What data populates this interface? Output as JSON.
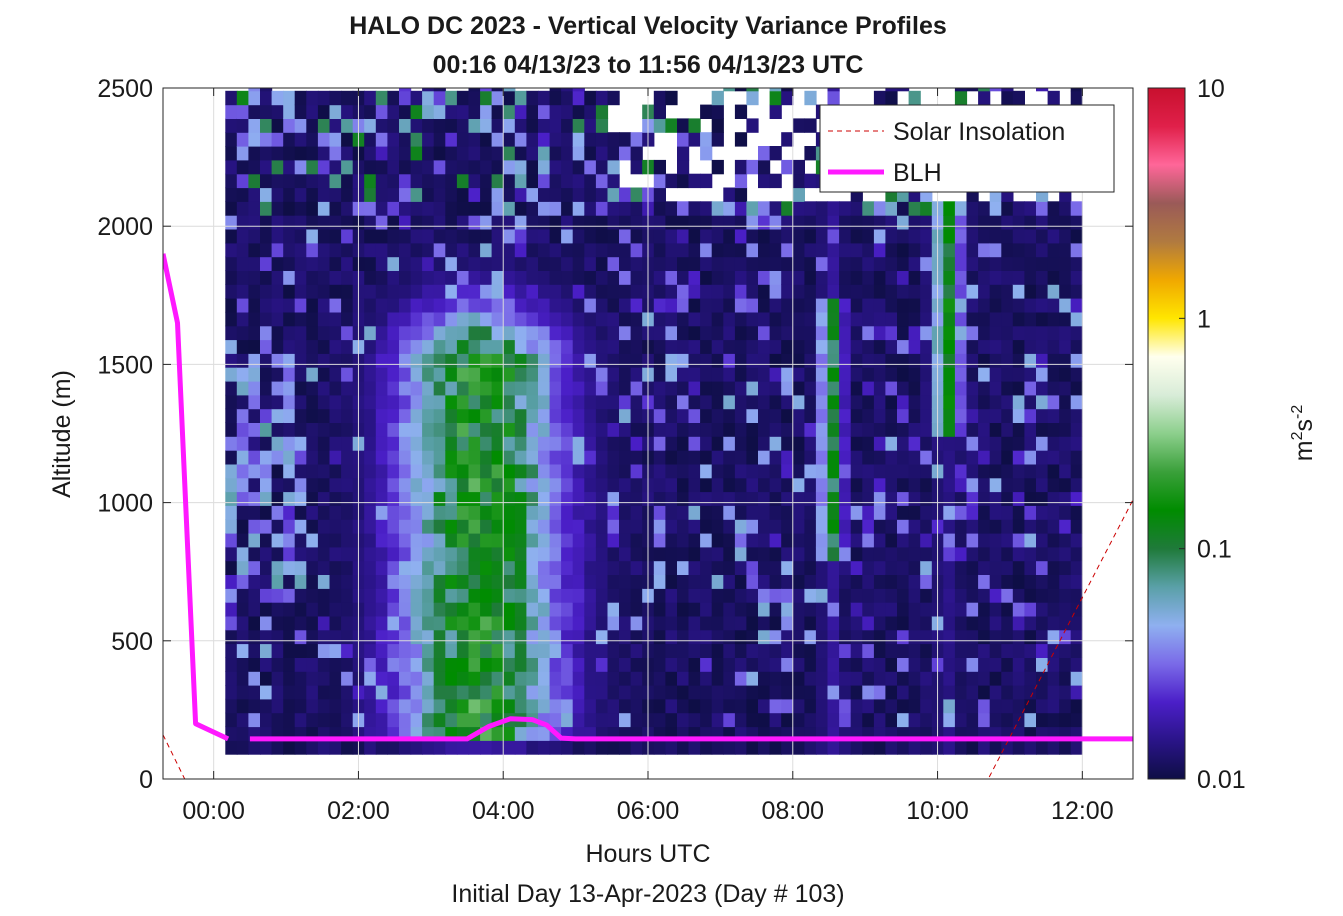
{
  "chart_data": {
    "type": "heatmap",
    "title": "HALO DC 2023 - Vertical Velocity Variance Profiles",
    "subtitle": "00:16 04/13/23 to 11:56 04/13/23  UTC",
    "xlabel": "Hours UTC",
    "xlabel2": "Initial Day 13-Apr-2023 (Day # 103)",
    "ylabel": "Altitude (m)",
    "xlim": [
      -0.7,
      12.7
    ],
    "ylim": [
      0,
      2500
    ],
    "xticks": [
      0,
      2,
      4,
      6,
      8,
      10,
      12
    ],
    "xtick_labels": [
      "00:00",
      "02:00",
      "04:00",
      "06:00",
      "08:00",
      "10:00",
      "12:00"
    ],
    "yticks": [
      0,
      500,
      1000,
      1500,
      2000,
      2500
    ],
    "ytick_labels": [
      "0",
      "500",
      "1000",
      "1500",
      "2000",
      "2500"
    ],
    "grid": true,
    "legend": {
      "placement": "top-right",
      "entries": [
        {
          "label": "Solar Insolation",
          "style": "dashed",
          "color": "#cc0000"
        },
        {
          "label": "BLH",
          "style": "solid",
          "color": "#ff19ff"
        }
      ]
    },
    "colorbar": {
      "label": "m2s-2",
      "scale": "log",
      "range": [
        0.01,
        10
      ],
      "ticks": [
        0.01,
        0.1,
        1,
        10
      ],
      "tick_labels": [
        "0.01",
        "0.1",
        "1",
        "10"
      ],
      "colors": [
        "#0e0e45",
        "#2a1488",
        "#4b1fc8",
        "#7a6ae8",
        "#8fb0f0",
        "#5aa0a8",
        "#1f7a3a",
        "#008c00",
        "#3aa03a",
        "#8ccf8c",
        "#d8ecd8",
        "#ffffee",
        "#ffe600",
        "#f0a800",
        "#b07a40",
        "#9a5a58",
        "#ff6699",
        "#e0204a",
        "#c8102e"
      ]
    },
    "grid_data": {
      "x_start": 0.16,
      "x_end": 11.93,
      "dx": 0.16,
      "y_start": 90,
      "y_end": 2500,
      "dy": 50,
      "notes": "Variance field (m2 s-2), log scale 0.01-10. Background ~0.01 above ~100 m; convective green plume (0.08-0.3) from ~02:30 to ~05:00 below ~1400 m; green columns near 08:30 and 10:00; blue/purple columns 0.02-0.05 elsewhere; sparse returns above ~2100 m."
    },
    "series": [
      {
        "name": "BLH",
        "x": [
          -0.7,
          -0.5,
          -0.25,
          0.2,
          0.5,
          3.5,
          3.8,
          4.1,
          4.4,
          4.6,
          4.8,
          5.0,
          8.0,
          12.7
        ],
        "y": [
          1900,
          1650,
          200,
          145,
          145,
          145,
          190,
          218,
          215,
          195,
          148,
          145,
          145,
          145
        ]
      },
      {
        "name": "Solar Insolation",
        "x": [
          -0.7,
          -0.4,
          10.7,
          12.7
        ],
        "y": [
          160,
          0,
          0,
          1010
        ]
      }
    ]
  }
}
